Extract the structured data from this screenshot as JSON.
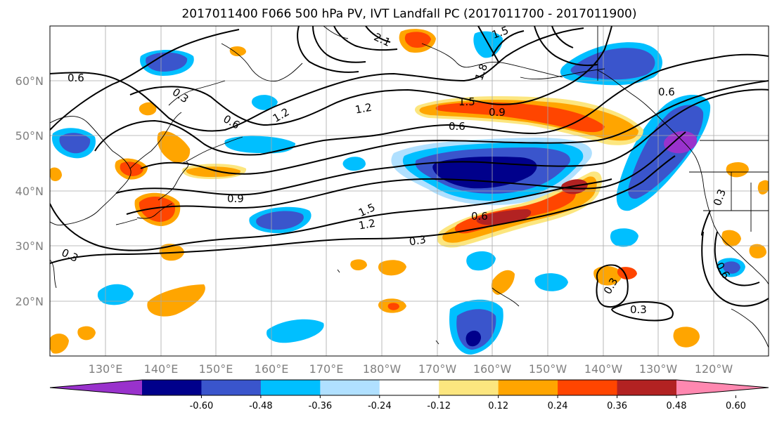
{
  "title": "2017011400 F066 500 hPa PV, IVT Landfall PC (2017011700 - 2017011900)",
  "lat_labels": [
    "60°N",
    "50°N",
    "40°N",
    "30°N",
    "20°N"
  ],
  "lon_labels": [
    "130°E",
    "140°E",
    "150°E",
    "160°E",
    "170°E",
    "180°W",
    "170°W",
    "160°W",
    "150°W",
    "140°W",
    "130°W",
    "120°W"
  ],
  "contour_labels": [
    "0.6",
    "0.3",
    "0.6",
    "1.2",
    "1.2",
    "1.5",
    "0.9",
    "0.6",
    "1.5",
    "0.6",
    "0.9",
    "1.5",
    "1.2",
    "0.6",
    "0.3",
    "0.3",
    "0.3",
    "0.3",
    "0.6",
    "0.3",
    "2.1",
    "1.8"
  ],
  "colorbar": {
    "tick_labels": [
      "-0.60",
      "-0.48",
      "-0.36",
      "-0.24",
      "-0.12",
      "0.12",
      "0.24",
      "0.36",
      "0.48",
      "0.60"
    ],
    "bins": [
      {
        "color": "#9932cc"
      },
      {
        "color": "#00008b"
      },
      {
        "color": "#3a55cc"
      },
      {
        "color": "#00bfff"
      },
      {
        "color": "#b0e0ff"
      },
      {
        "color": "#ffffff"
      },
      {
        "color": "#fce67f"
      },
      {
        "color": "#ffa500"
      },
      {
        "color": "#ff4500"
      },
      {
        "color": "#b22222"
      },
      {
        "color": "#ff88b0"
      }
    ]
  },
  "colors": {
    "grid": "#a9a9a9",
    "contour": "#000000",
    "coast": "#000000"
  }
}
